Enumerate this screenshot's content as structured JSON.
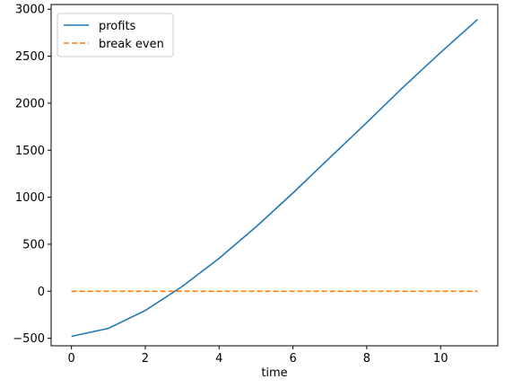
{
  "chart_data": {
    "type": "line",
    "title": "",
    "xlabel": "time",
    "ylabel": "",
    "xlim": [
      -0.55,
      11.55
    ],
    "ylim": [
      -580,
      3050
    ],
    "xticks": [
      0,
      2,
      4,
      6,
      8,
      10
    ],
    "yticks": [
      -500,
      0,
      500,
      1000,
      1500,
      2000,
      2500,
      3000
    ],
    "grid": false,
    "legend_position": "top-left",
    "series": [
      {
        "name": "profits",
        "style": "solid",
        "color": "#1f77b4",
        "x": [
          0,
          1,
          2,
          3,
          4,
          5,
          6,
          7,
          8,
          9,
          10,
          11
        ],
        "values": [
          -480,
          -395,
          -205,
          50,
          350,
          685,
          1045,
          1420,
          1795,
          2175,
          2540,
          2890
        ]
      },
      {
        "name": "break even",
        "style": "dashed",
        "color": "#ff7f0e",
        "x": [
          0,
          1,
          2,
          3,
          4,
          5,
          6,
          7,
          8,
          9,
          10,
          11
        ],
        "values": [
          0,
          0,
          0,
          0,
          0,
          0,
          0,
          0,
          0,
          0,
          0,
          0
        ]
      }
    ]
  }
}
